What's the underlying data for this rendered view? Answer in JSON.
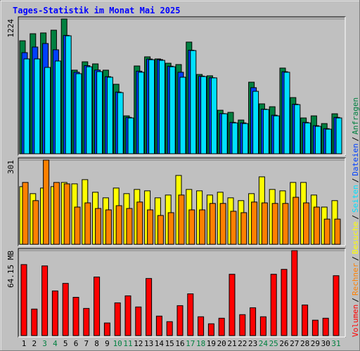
{
  "chart_data": [
    {
      "type": "bar",
      "title": "Tages-Statistik im Monat Mai 2025",
      "ylim": [
        0,
        1224
      ],
      "yticks": [
        1224
      ],
      "series": [
        {
          "name": "Anfragen",
          "color": "#008040",
          "values": [
            1026,
            1090,
            1097,
            1122,
            1224,
            759,
            835,
            816,
            759,
            631,
            344,
            797,
            880,
            861,
            822,
            810,
            1014,
            720,
            708,
            395,
            376,
            306,
            650,
            453,
            427,
            778,
            510,
            325,
            344,
            274,
            363
          ]
        },
        {
          "name": "Dateien",
          "color": "#0040ff",
          "values": [
            918,
            969,
            1001,
            944,
            1075,
            740,
            800,
            760,
            700,
            560,
            330,
            750,
            860,
            855,
            795,
            740,
            940,
            705,
            690,
            365,
            285,
            280,
            600,
            405,
            350,
            745,
            450,
            285,
            255,
            228,
            330
          ]
        },
        {
          "name": "Seiten",
          "color": "#00e0ff",
          "values": [
            861,
            861,
            784,
            842,
            1071,
            727,
            790,
            746,
            695,
            555,
            325,
            740,
            854,
            848,
            790,
            695,
            937,
            701,
            689,
            363,
            280,
            274,
            567,
            402,
            344,
            740,
            446,
            280,
            249,
            223,
            325
          ]
        }
      ]
    },
    {
      "type": "bar",
      "ylim": [
        0,
        301
      ],
      "yticks": [
        301
      ],
      "series": [
        {
          "name": "Besuche",
          "color": "#ffff00",
          "values": [
            206,
            181,
            201,
            206,
            221,
            216,
            231,
            186,
            166,
            201,
            181,
            196,
            191,
            166,
            176,
            246,
            196,
            191,
            176,
            186,
            166,
            156,
            181,
            241,
            196,
            191,
            221,
            221,
            176,
            133,
            156
          ]
        },
        {
          "name": "Rechner",
          "color": "#ff8000",
          "values": [
            221,
            156,
            301,
            221,
            216,
            133,
            148,
            128,
            123,
            138,
            128,
            151,
            123,
            103,
            113,
            176,
            123,
            123,
            146,
            146,
            118,
            113,
            151,
            148,
            146,
            146,
            168,
            148,
            133,
            90,
            90
          ]
        }
      ]
    },
    {
      "type": "bar",
      "ylim": [
        0,
        64.15
      ],
      "yticks": [
        {
          "value": 64.15,
          "label": "64.15 MB"
        }
      ],
      "categories": [
        "1",
        "2",
        "3",
        "4",
        "5",
        "6",
        "7",
        "8",
        "9",
        "10",
        "11",
        "12",
        "13",
        "14",
        "15",
        "16",
        "17",
        "18",
        "19",
        "20",
        "21",
        "22",
        "23",
        "24",
        "25",
        "26",
        "27",
        "28",
        "29",
        "30",
        "31"
      ],
      "category_colors": [
        "#000000",
        "#000000",
        "#008040",
        "#008040",
        "#000000",
        "#000000",
        "#000000",
        "#000000",
        "#000000",
        "#008040",
        "#008040",
        "#000000",
        "#000000",
        "#000000",
        "#000000",
        "#000000",
        "#008040",
        "#008040",
        "#000000",
        "#000000",
        "#000000",
        "#000000",
        "#000000",
        "#008040",
        "#008040",
        "#000000",
        "#000000",
        "#000000",
        "#000000",
        "#000000",
        "#008040"
      ],
      "legend_separator": "/",
      "series": [
        {
          "name": "Volumen",
          "color": "#ff0000",
          "values": [
            53.6,
            20.0,
            52.6,
            33.7,
            39.4,
            28.9,
            20.5,
            44.2,
            9.5,
            24.7,
            30.0,
            21.6,
            43.1,
            14.7,
            10.5,
            22.6,
            31.5,
            14.2,
            8.9,
            13.1,
            46.3,
            15.8,
            21.0,
            14.2,
            46.3,
            50.0,
            64.15,
            23.1,
            11.6,
            13.1,
            45.2
          ]
        }
      ]
    }
  ]
}
